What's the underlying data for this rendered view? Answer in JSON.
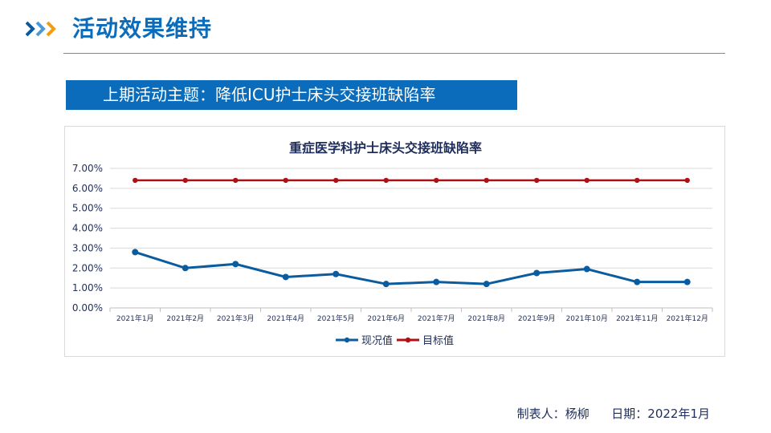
{
  "header": {
    "title": "活动效果维持",
    "icon": "triple-chevron-icon"
  },
  "banner": {
    "text": "上期活动主题：降低ICU护士床头交接班缺陷率"
  },
  "chart_data": {
    "type": "line",
    "title": "重症医学科护士床头交接班缺陷率",
    "categories": [
      "2021年1月",
      "2021年2月",
      "2021年3月",
      "2021年4月",
      "2021年5月",
      "2021年6月",
      "2021年7月",
      "2021年8月",
      "2021年9月",
      "2021年10月",
      "2021年11月",
      "2021年12月"
    ],
    "series": [
      {
        "name": "现况值",
        "color": "#0b5c9e",
        "values": [
          2.8,
          2.0,
          2.2,
          1.55,
          1.7,
          1.2,
          1.3,
          1.2,
          1.75,
          1.95,
          1.3,
          1.3
        ]
      },
      {
        "name": "目标值",
        "color": "#b00f14",
        "values": [
          6.4,
          6.4,
          6.4,
          6.4,
          6.4,
          6.4,
          6.4,
          6.4,
          6.4,
          6.4,
          6.4,
          6.4
        ]
      }
    ],
    "yticks": [
      "0.00%",
      "1.00%",
      "2.00%",
      "3.00%",
      "4.00%",
      "5.00%",
      "6.00%",
      "7.00%"
    ],
    "ylim": [
      0,
      7
    ],
    "yunit": "%",
    "grid": true,
    "legend": "bottom"
  },
  "footer": {
    "maker_label": "制表人：",
    "maker": "杨柳",
    "date_label": "日期：",
    "date": "2022年1月"
  }
}
